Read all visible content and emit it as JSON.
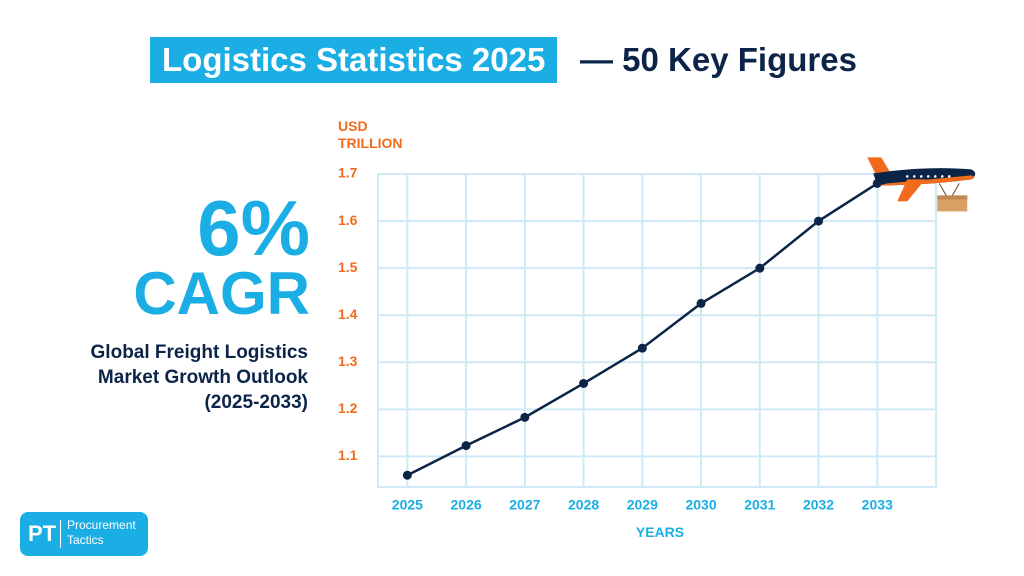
{
  "header": {
    "title_highlight": "Logistics Statistics 2025",
    "title_rest": "— 50 Key Figures"
  },
  "highlight": {
    "figure": "6%",
    "label": "CAGR",
    "description": [
      "Global Freight Logistics",
      "Market Growth Outlook",
      "(2025-2033)"
    ]
  },
  "logo": {
    "initials": "PT",
    "name": [
      "Procurement",
      "Tactics"
    ]
  },
  "chart_data": {
    "type": "line",
    "y_label": "USD TRILLION",
    "x_label": "YEARS",
    "x": [
      2025,
      2026,
      2027,
      2028,
      2029,
      2030,
      2031,
      2032,
      2033
    ],
    "series": [
      {
        "color": "#0b2447",
        "values": [
          1.06,
          1.123,
          1.183,
          1.255,
          1.33,
          1.425,
          1.5,
          1.6,
          1.68
        ]
      }
    ],
    "xlim": [
      2024.5,
      2034
    ],
    "xticks": [
      2025,
      2026,
      2027,
      2028,
      2029,
      2030,
      2031,
      2032,
      2033
    ],
    "ylim": [
      1.035,
      1.7
    ],
    "yticks": [
      1.1,
      1.2,
      1.3,
      1.4,
      1.5,
      1.6,
      1.7
    ],
    "grid": true
  }
}
